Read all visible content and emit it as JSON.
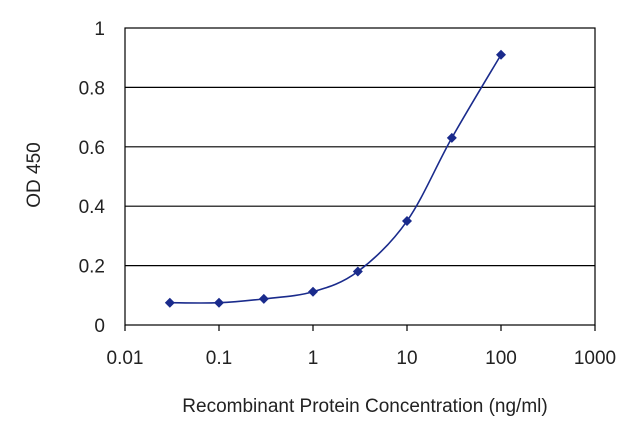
{
  "chart_data": {
    "type": "scatter",
    "title": "",
    "xlabel": "Recombinant Protein Concentration (ng/ml)",
    "ylabel": "OD 450",
    "x_scale": "log",
    "xlim": [
      0.01,
      1000
    ],
    "ylim": [
      0,
      1
    ],
    "x_ticks": [
      0.01,
      0.1,
      1,
      10,
      100,
      1000
    ],
    "x_tick_labels": [
      "0.01",
      "0.1",
      "1",
      "10",
      "100",
      "1000"
    ],
    "y_ticks": [
      0,
      0.2,
      0.4,
      0.6,
      0.8,
      1
    ],
    "y_tick_labels": [
      "0",
      "0.2",
      "0.4",
      "0.6",
      "0.8",
      "1"
    ],
    "grid": "horizontal",
    "fit_curve": true,
    "colors": {
      "series": "#1a2b8c",
      "grid": "#000000",
      "frame": "#000000"
    },
    "series": [
      {
        "x": [
          0.03,
          0.1,
          0.3,
          1,
          3,
          10,
          30,
          100
        ],
        "y": [
          0.075,
          0.075,
          0.088,
          0.112,
          0.18,
          0.35,
          0.63,
          0.91
        ]
      }
    ]
  }
}
